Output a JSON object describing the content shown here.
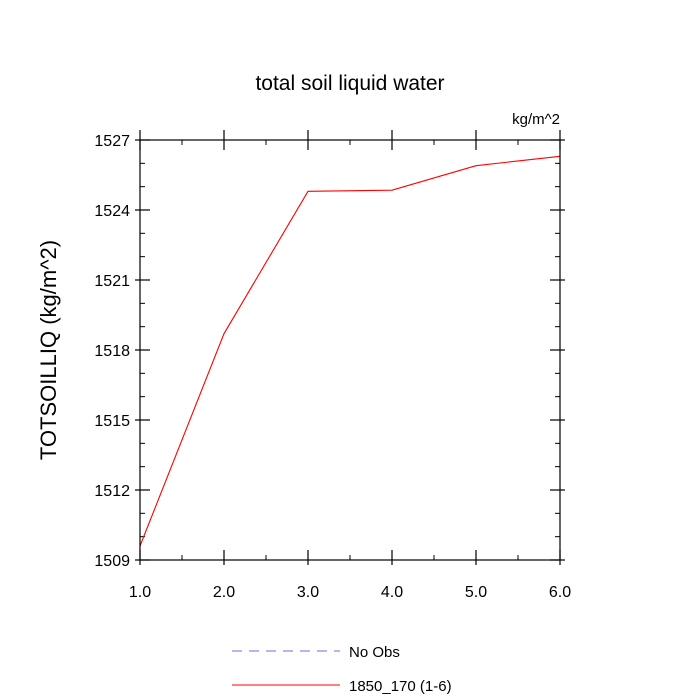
{
  "chart_data": {
    "type": "line",
    "title": "total soil liquid water",
    "units_label": "kg/m^2",
    "ylabel": "TOTSOILLIQ  (kg/m^2)",
    "xlabel": "",
    "xlim": [
      1,
      6
    ],
    "ylim": [
      1509,
      1527
    ],
    "x_ticks": [
      1,
      2,
      3,
      4,
      5,
      6
    ],
    "x_tick_labels": [
      "1.0",
      "2.0",
      "3.0",
      "4.0",
      "5.0",
      "6.0"
    ],
    "y_ticks": [
      1509,
      1512,
      1515,
      1518,
      1521,
      1524,
      1527
    ],
    "y_tick_labels": [
      "1509",
      "1512",
      "1515",
      "1518",
      "1521",
      "1524",
      "1527"
    ],
    "y_minor_step": 1,
    "x_minor_step": 0.5,
    "legend_position": "bottom-center",
    "series": [
      {
        "name": "1850_170 (1-6)",
        "color": "#ff0000",
        "dash": "solid",
        "x": [
          1,
          2,
          3,
          4,
          5,
          6
        ],
        "values": [
          1509.6,
          1518.7,
          1524.8,
          1524.85,
          1525.9,
          1526.3
        ]
      }
    ],
    "legend": [
      {
        "label": "No Obs",
        "color": "#6f6fd8",
        "dash": "dashed"
      },
      {
        "label": "1850_170 (1-6)",
        "color": "#ff0000",
        "dash": "solid"
      }
    ]
  }
}
